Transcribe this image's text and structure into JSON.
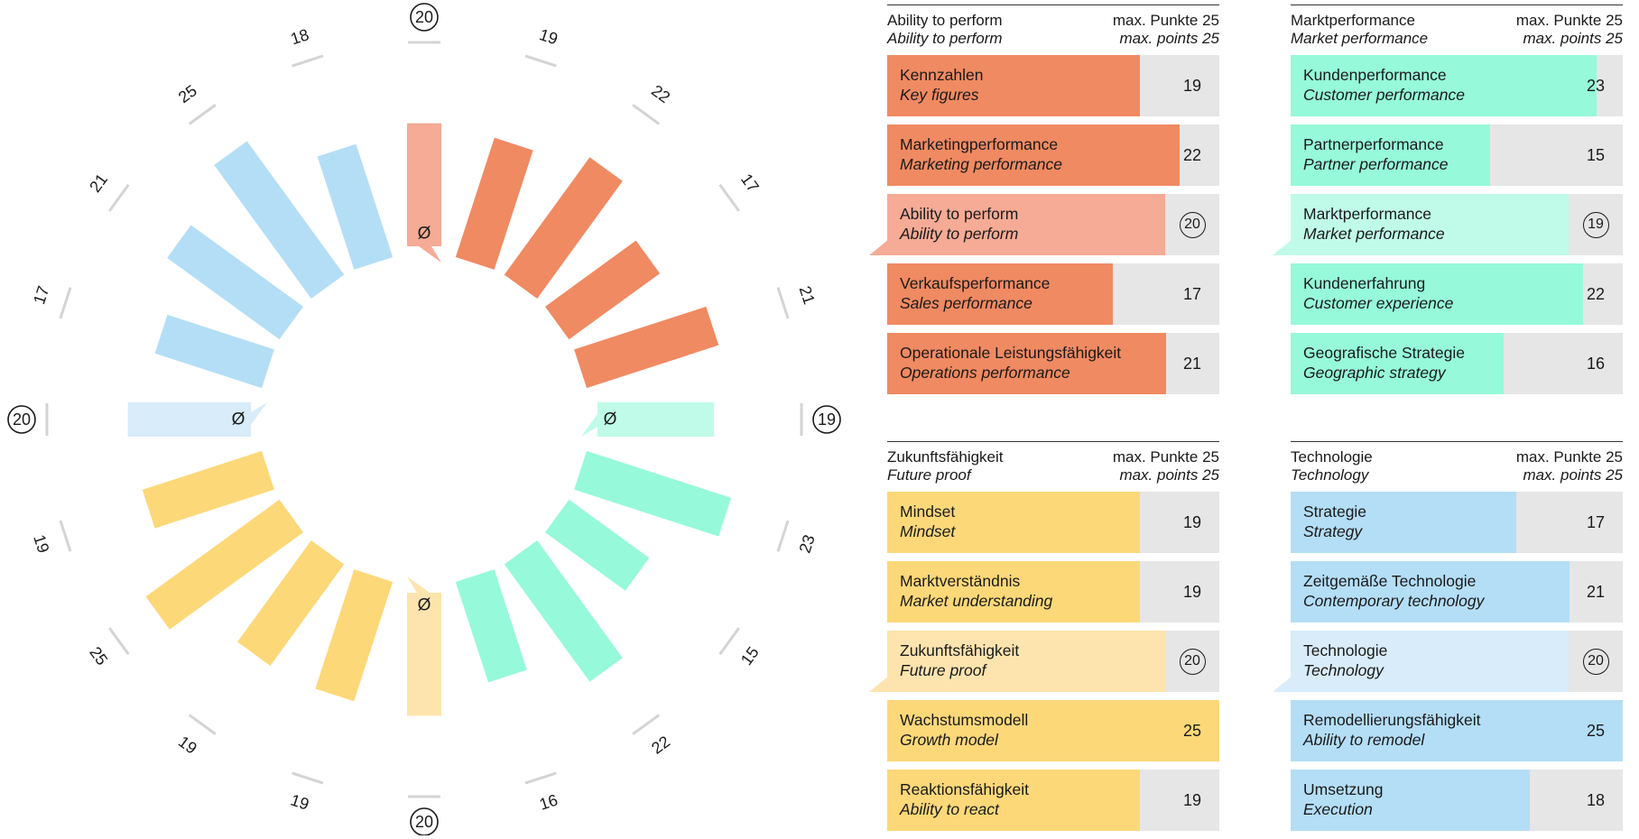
{
  "chart_data": {
    "type": "radial-bar",
    "max": 25,
    "segments": [
      {
        "name": "Ability to perform",
        "color": "#f08a62",
        "avg_color": "#f5ab95",
        "average": 20,
        "items": [
          {
            "de": "Kennzahlen",
            "en": "Key figures",
            "value": 19
          },
          {
            "de": "Marketingperformance",
            "en": "Marketing performance",
            "value": 22
          },
          {
            "de": "Verkaufsperformance",
            "en": "Sales performance",
            "value": 17
          },
          {
            "de": "Operationale Leistungsfähigkeit",
            "en": "Operations performance",
            "value": 21
          }
        ]
      },
      {
        "name": "Marktperformance",
        "color": "#96f9da",
        "avg_color": "#bffbe8",
        "average": 19,
        "items": [
          {
            "de": "Kundenperformance",
            "en": "Customer performance",
            "value": 23
          },
          {
            "de": "Partnerperformance",
            "en": "Partner performance",
            "value": 15
          },
          {
            "de": "Kundenerfahrung",
            "en": "Customer experience",
            "value": 22
          },
          {
            "de": "Geografische Strategie",
            "en": "Geographic strategy",
            "value": 16
          }
        ]
      },
      {
        "name": "Zukunftsfähigkeit",
        "color": "#fdd879",
        "avg_color": "#fde4ae",
        "average": 20,
        "items": [
          {
            "de": "Mindset",
            "en": "Mindset",
            "value": 19
          },
          {
            "de": "Marktverständnis",
            "en": "Market understanding",
            "value": 19
          },
          {
            "de": "Wachstumsmodell",
            "en": "Growth model",
            "value": 25
          },
          {
            "de": "Reaktionsfähigkeit",
            "en": "Ability to react",
            "value": 19
          }
        ]
      },
      {
        "name": "Technologie",
        "color": "#b4def6",
        "avg_color": "#d8ecf9",
        "average": 20,
        "items": [
          {
            "de": "Strategie",
            "en": "Strategy",
            "value": 17
          },
          {
            "de": "Zeitgemäße Technologie",
            "en": "Contemporary technology",
            "value": 21
          },
          {
            "de": "Remodellierungsfähigkeit",
            "en": "Ability to remodel",
            "value": 25
          },
          {
            "de": "Umsetzung",
            "en": "Execution",
            "value": 18
          }
        ]
      }
    ],
    "avg_symbol": "Ø"
  },
  "panels": [
    {
      "title_de": "Ability to perform",
      "title_en": "Ability to perform",
      "max_de": "max. Punkte 25",
      "max_en": "max. points 25",
      "avg_label_de": "Ability to perform",
      "avg_label_en": "Ability to perform"
    },
    {
      "title_de": "Marktperformance",
      "title_en": "Market performance",
      "max_de": "max. Punkte 25",
      "max_en": "max. points 25",
      "avg_label_de": "Marktperformance",
      "avg_label_en": "Market performance"
    },
    {
      "title_de": "Zukunftsfähigkeit",
      "title_en": "Future proof",
      "max_de": "max. Punkte 25",
      "max_en": "max. points 25",
      "avg_label_de": "Zukunftsfähigkeit",
      "avg_label_en": "Future proof"
    },
    {
      "title_de": "Technologie",
      "title_en": "Technology",
      "max_de": "max. Punkte 25",
      "max_en": "max. points 25",
      "avg_label_de": "Technologie",
      "avg_label_en": "Technology"
    }
  ]
}
